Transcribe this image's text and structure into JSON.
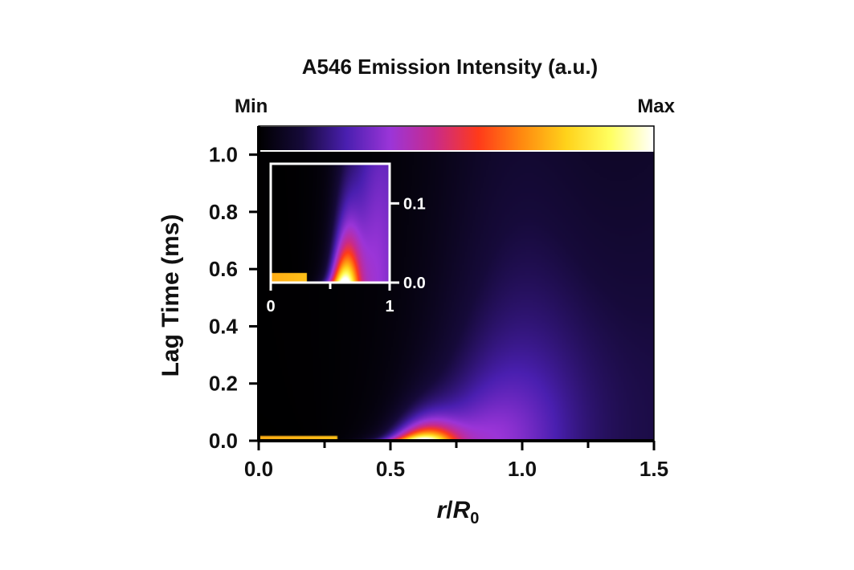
{
  "chart_data": {
    "type": "heatmap",
    "title": "A546 Emission Intensity (a.u.)",
    "colorbar": {
      "min_label": "Min",
      "max_label": "Max",
      "colormap": [
        "#000000",
        "#160a3a",
        "#4a1fb0",
        "#9b35d8",
        "#c92a8a",
        "#ff3a1a",
        "#ff8a10",
        "#ffd21a",
        "#ffff60",
        "#ffffff"
      ]
    },
    "xlabel_italic": "r",
    "xlabel_mid": "/",
    "xlabel_R": "R",
    "xlabel_sub": "0",
    "ylabel": "Lag Time (ms)",
    "xlim": [
      0,
      1.5
    ],
    "ylim": [
      0,
      1.1
    ],
    "x_ticks": [
      {
        "value": 0.0,
        "label": "0.0"
      },
      {
        "value": 0.5,
        "label": "0.5"
      },
      {
        "value": 1.0,
        "label": "1.0"
      },
      {
        "value": 1.5,
        "label": "1.5"
      }
    ],
    "x_minor_ticks": [
      0.25,
      0.75,
      1.25
    ],
    "y_ticks": [
      {
        "value": 0.0,
        "label": "0.0"
      },
      {
        "value": 0.2,
        "label": "0.2"
      },
      {
        "value": 0.4,
        "label": "0.4"
      },
      {
        "value": 0.6,
        "label": "0.6"
      },
      {
        "value": 0.8,
        "label": "0.8"
      },
      {
        "value": 1.0,
        "label": "1.0"
      }
    ],
    "inset": {
      "xlim": [
        0,
        1
      ],
      "ylim": [
        0,
        0.15
      ],
      "x_ticks": [
        {
          "value": 0,
          "label": "0"
        },
        {
          "value": 1,
          "label": "1"
        }
      ],
      "x_minor_ticks": [
        0.5
      ],
      "y_ticks": [
        {
          "value": 0.0,
          "label": "0.0"
        },
        {
          "value": 0.1,
          "label": "0.1"
        }
      ]
    },
    "peak": {
      "r": 0.62,
      "time": 0.02
    }
  }
}
